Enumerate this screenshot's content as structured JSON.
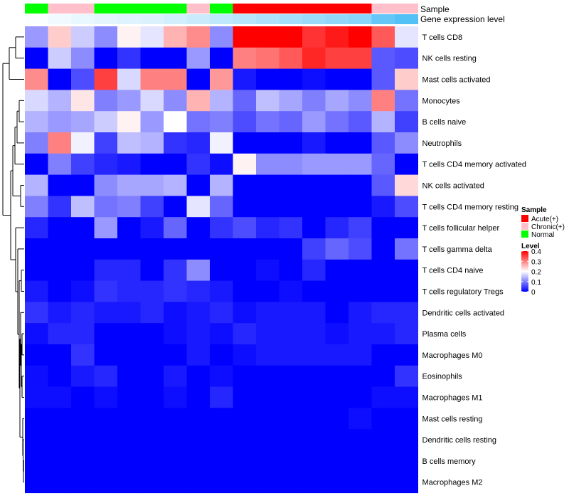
{
  "chart_data": {
    "type": "heatmap",
    "title": "",
    "annotation_rows": [
      "Sample",
      "Gene expression level"
    ],
    "legend_sample": {
      "title": "Sample",
      "entries": [
        {
          "label": "Acute(+)",
          "color": "#ff0000"
        },
        {
          "label": "Chronic(+)",
          "color": "#ffc0cb"
        },
        {
          "label": "Normal",
          "color": "#00ff00"
        }
      ]
    },
    "legend_level": {
      "title": "Level",
      "ticks": [
        "0",
        "0.1",
        "0.2",
        "0.3",
        "0.4"
      ],
      "range": [
        0,
        0.4
      ],
      "colors": [
        "#0000ff",
        "#ffffff",
        "#ff0000"
      ]
    },
    "sample_groups": [
      "Normal",
      "Chronic(+)",
      "Chronic(+)",
      "Normal",
      "Normal",
      "Normal",
      "Normal",
      "Chronic(+)",
      "Normal",
      "Acute(+)",
      "Acute(+)",
      "Acute(+)",
      "Acute(+)",
      "Acute(+)",
      "Acute(+)",
      "Chronic(+)",
      "Chronic(+)"
    ],
    "gene_expression_level": [
      0.02,
      0.08,
      0.12,
      0.15,
      0.18,
      0.2,
      0.25,
      0.3,
      0.35,
      0.4,
      0.45,
      0.5,
      0.55,
      0.6,
      0.65,
      0.85,
      0.95
    ],
    "rows": [
      "T cells CD8",
      "NK cells resting",
      "Mast cells activated",
      "Monocytes",
      "B cells naive",
      "Neutrophils",
      "T cells CD4 memory activated",
      "NK cells activated",
      "T cells CD4 memory resting",
      "T cells follicular helper",
      "T cells gamma delta",
      "T cells CD4 naive",
      "T cells regulatory  Tregs",
      "Dendritic cells activated",
      "Plasma cells",
      "Macrophages M0",
      "Eosinophils",
      "Macrophages M1",
      "Mast cells resting",
      "Dendritic cells resting",
      "B cells memory",
      "Macrophages M2"
    ],
    "values": [
      [
        0.12,
        0.24,
        0.16,
        0.11,
        0.21,
        0.18,
        0.26,
        0.29,
        0.11,
        0.4,
        0.4,
        0.4,
        0.36,
        0.38,
        0.4,
        0.33,
        0.18
      ],
      [
        0.0,
        0.16,
        0.11,
        0.0,
        0.04,
        0.0,
        0.0,
        0.12,
        0.0,
        0.3,
        0.31,
        0.33,
        0.37,
        0.35,
        0.35,
        0.07,
        0.06
      ],
      [
        0.29,
        0.0,
        0.06,
        0.35,
        0.17,
        0.3,
        0.3,
        0.0,
        0.28,
        0.02,
        0.0,
        0.0,
        0.01,
        0.0,
        0.0,
        0.07,
        0.24
      ],
      [
        0.17,
        0.14,
        0.22,
        0.1,
        0.12,
        0.17,
        0.11,
        0.26,
        0.14,
        0.08,
        0.15,
        0.13,
        0.1,
        0.13,
        0.11,
        0.3,
        0.09
      ],
      [
        0.14,
        0.12,
        0.13,
        0.16,
        0.21,
        0.12,
        0.2,
        0.09,
        0.1,
        0.06,
        0.09,
        0.08,
        0.12,
        0.09,
        0.07,
        0.14,
        0.05
      ],
      [
        0.1,
        0.3,
        0.19,
        0.05,
        0.15,
        0.14,
        0.04,
        0.03,
        0.19,
        0.0,
        0.0,
        0.0,
        0.02,
        0.0,
        0.0,
        0.07,
        0.11
      ],
      [
        0.0,
        0.1,
        0.05,
        0.03,
        0.02,
        0.0,
        0.0,
        0.04,
        0.01,
        0.21,
        0.11,
        0.11,
        0.12,
        0.12,
        0.12,
        0.08,
        0.0
      ],
      [
        0.14,
        0.0,
        0.0,
        0.11,
        0.13,
        0.13,
        0.14,
        0.0,
        0.14,
        0.0,
        0.0,
        0.0,
        0.0,
        0.0,
        0.0,
        0.07,
        0.23
      ],
      [
        0.1,
        0.04,
        0.15,
        0.09,
        0.1,
        0.05,
        0.0,
        0.18,
        0.08,
        0.0,
        0.0,
        0.0,
        0.0,
        0.0,
        0.0,
        0.02,
        0.06
      ],
      [
        0.03,
        0.0,
        0.0,
        0.12,
        0.0,
        0.02,
        0.08,
        0.0,
        0.04,
        0.06,
        0.03,
        0.04,
        0.0,
        0.03,
        0.05,
        0.0,
        0.0
      ],
      [
        0.0,
        0.0,
        0.0,
        0.0,
        0.0,
        0.0,
        0.0,
        0.0,
        0.0,
        0.0,
        0.0,
        0.0,
        0.05,
        0.08,
        0.06,
        0.0,
        0.09
      ],
      [
        0.0,
        0.0,
        0.0,
        0.03,
        0.03,
        0.0,
        0.04,
        0.11,
        0.0,
        0.0,
        0.01,
        0.0,
        0.03,
        0.0,
        0.0,
        0.0,
        0.0
      ],
      [
        0.02,
        0.0,
        0.01,
        0.04,
        0.03,
        0.03,
        0.04,
        0.03,
        0.02,
        0.0,
        0.0,
        0.01,
        0.0,
        0.0,
        0.0,
        0.0,
        0.0
      ],
      [
        0.04,
        0.02,
        0.03,
        0.02,
        0.02,
        0.03,
        0.01,
        0.02,
        0.03,
        0.01,
        0.02,
        0.02,
        0.02,
        0.0,
        0.02,
        0.03,
        0.03
      ],
      [
        0.01,
        0.03,
        0.03,
        0.0,
        0.0,
        0.0,
        0.01,
        0.02,
        0.01,
        0.03,
        0.02,
        0.02,
        0.02,
        0.01,
        0.02,
        0.02,
        0.03
      ],
      [
        0.0,
        0.0,
        0.04,
        0.0,
        0.0,
        0.0,
        0.0,
        0.02,
        0.0,
        0.01,
        0.02,
        0.02,
        0.02,
        0.02,
        0.02,
        0.0,
        0.0
      ],
      [
        0.01,
        0.0,
        0.02,
        0.03,
        0.0,
        0.0,
        0.02,
        0.0,
        0.01,
        0.0,
        0.0,
        0.0,
        0.0,
        0.0,
        0.0,
        0.0,
        0.04
      ],
      [
        0.01,
        0.01,
        0.0,
        0.01,
        0.0,
        0.0,
        0.01,
        0.0,
        0.03,
        0.0,
        0.0,
        0.0,
        0.0,
        0.0,
        0.0,
        0.01,
        0.01
      ],
      [
        0.0,
        0.0,
        0.0,
        0.0,
        0.0,
        0.0,
        0.0,
        0.0,
        0.0,
        0.0,
        0.0,
        0.0,
        0.0,
        0.0,
        0.01,
        0.0,
        0.0
      ],
      [
        0.0,
        0.0,
        0.0,
        0.0,
        0.0,
        0.0,
        0.0,
        0.0,
        0.0,
        0.0,
        0.0,
        0.0,
        0.0,
        0.0,
        0.0,
        0.0,
        0.0
      ],
      [
        0.0,
        0.0,
        0.0,
        0.0,
        0.0,
        0.0,
        0.0,
        0.0,
        0.0,
        0.0,
        0.0,
        0.0,
        0.0,
        0.0,
        0.0,
        0.0,
        0.0
      ],
      [
        0.0,
        0.0,
        0.0,
        0.0,
        0.0,
        0.0,
        0.0,
        0.0,
        0.0,
        0.0,
        0.0,
        0.0,
        0.0,
        0.0,
        0.0,
        0.0,
        0.0
      ]
    ]
  }
}
